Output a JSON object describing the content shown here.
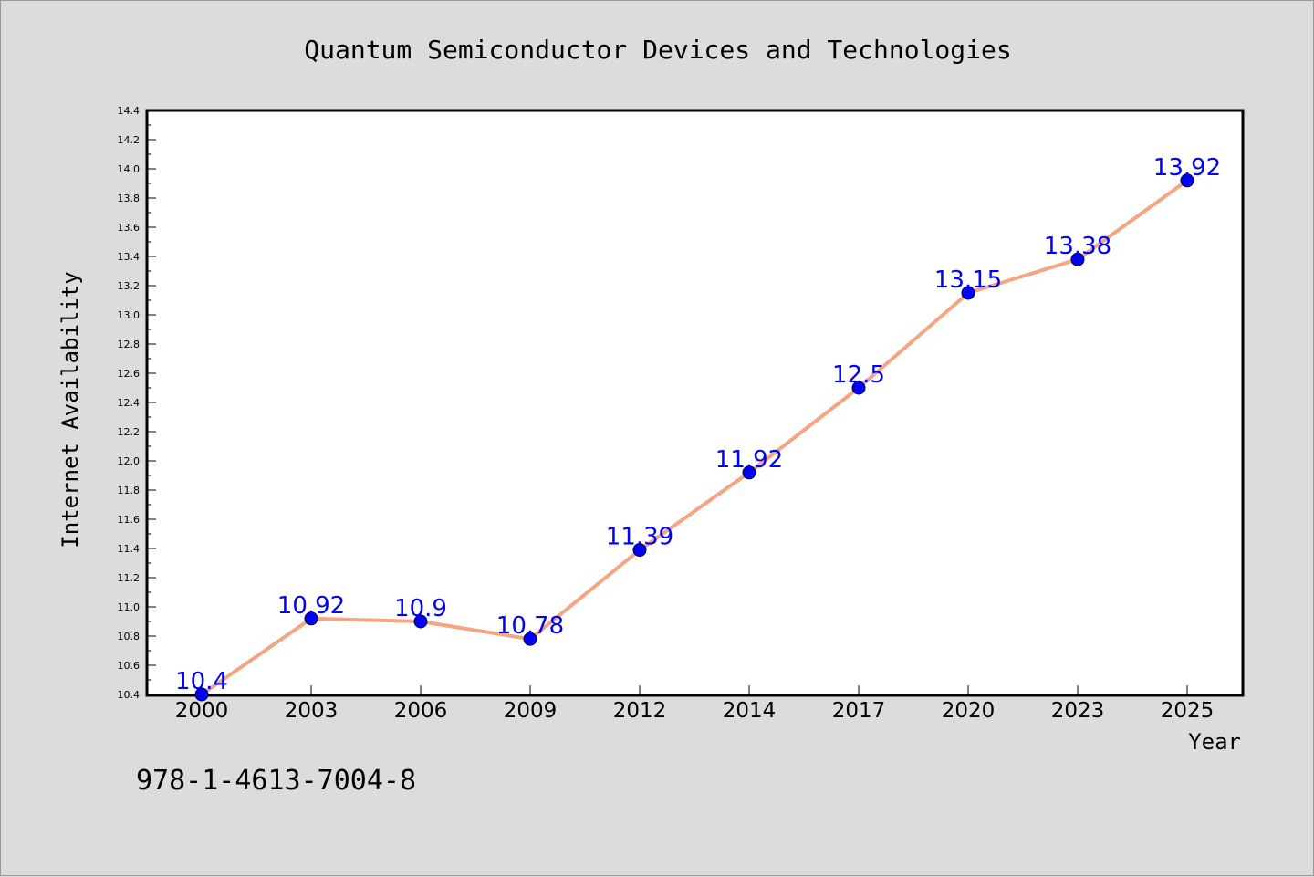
{
  "chart_data": {
    "type": "line",
    "title": "Quantum Semiconductor Devices and Technologies",
    "xlabel": "Year",
    "ylabel": "Internet Availability",
    "categories": [
      "2000",
      "2003",
      "2006",
      "2009",
      "2012",
      "2014",
      "2017",
      "2020",
      "2023",
      "2025"
    ],
    "series": [
      {
        "values": [
          10.4,
          10.92,
          10.9,
          10.78,
          11.39,
          11.92,
          12.5,
          13.15,
          13.38,
          13.92
        ]
      }
    ],
    "data_labels": [
      "10.4",
      "10.92",
      "10.9",
      "10.78",
      "11.39",
      "11.92",
      "12.5",
      "13.15",
      "13.38",
      "13.92"
    ],
    "ylim": [
      10.4,
      14.4
    ],
    "yticks": [
      "10.4",
      "10.6",
      "10.8",
      "11.0",
      "11.2",
      "11.4",
      "11.6",
      "11.8",
      "12.0",
      "12.2",
      "12.4",
      "12.6",
      "12.8",
      "13.0",
      "13.2",
      "13.4",
      "13.6",
      "13.8",
      "14.0",
      "14.2",
      "14.4"
    ],
    "grid": false,
    "legend": "none",
    "colors": {
      "line": "#f4a582",
      "marker": "#0000ff",
      "data_label": "#0000ff",
      "plot_bg": "#ffffff",
      "page_bg": "#dcdcdc"
    }
  },
  "footnote": "978-1-4613-7004-8"
}
